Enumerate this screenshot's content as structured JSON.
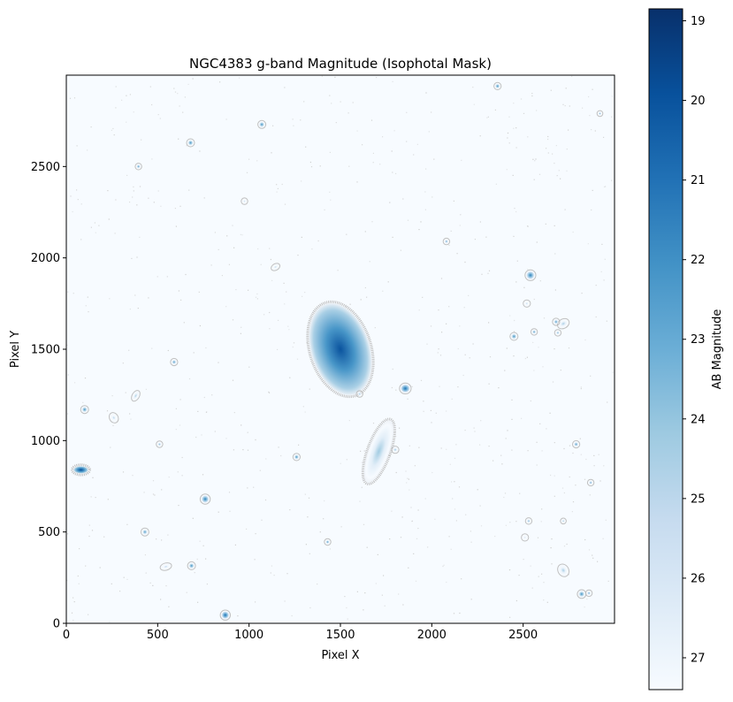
{
  "chart_data": {
    "type": "heatmap",
    "title": "NGC4383 g-band Magnitude (Isophotal Mask)",
    "xlabel": "Pixel X",
    "ylabel": "Pixel Y",
    "xlim": [
      0,
      3000
    ],
    "ylim": [
      0,
      3000
    ],
    "x_ticks": [
      0,
      500,
      1000,
      1500,
      2000,
      2500
    ],
    "y_ticks": [
      0,
      500,
      1000,
      1500,
      2000,
      2500
    ],
    "grid": false,
    "colormap": "Blues_r",
    "colorbar": {
      "label": "AB Magnitude",
      "range": [
        18.85,
        27.4
      ],
      "ticks": [
        19,
        20,
        21,
        22,
        23,
        24,
        25,
        26,
        27
      ],
      "color_bright": "#08306b",
      "color_faint": "#f7fbff",
      "stops": [
        "#08306b",
        "#08519c",
        "#2171b5",
        "#4292c6",
        "#6baed6",
        "#9ecae1",
        "#c6dbef",
        "#deebf7",
        "#f7fbff"
      ]
    },
    "sources": [
      {
        "name": "NGC4383",
        "x": 1500,
        "y": 1500,
        "rx": 160,
        "ry": 260,
        "angle_deg": -18,
        "peak_mag": 20.0
      },
      {
        "name": "companion",
        "x": 1710,
        "y": 940,
        "rx": 55,
        "ry": 180,
        "angle_deg": 20,
        "peak_mag": 24.3
      },
      {
        "x": 80,
        "y": 840,
        "rx": 40,
        "ry": 20,
        "angle_deg": 0,
        "peak_mag": 19.8
      },
      {
        "x": 2540,
        "y": 1905,
        "rx": 22,
        "ry": 22,
        "angle_deg": 0,
        "peak_mag": 21.5
      },
      {
        "x": 1855,
        "y": 1285,
        "rx": 24,
        "ry": 22,
        "angle_deg": 0,
        "peak_mag": 21.0
      },
      {
        "x": 760,
        "y": 680,
        "rx": 20,
        "ry": 20,
        "angle_deg": 0,
        "peak_mag": 21.5
      },
      {
        "x": 870,
        "y": 45,
        "rx": 20,
        "ry": 20,
        "angle_deg": 0,
        "peak_mag": 21.0
      },
      {
        "x": 2720,
        "y": 1640,
        "rx": 26,
        "ry": 18,
        "angle_deg": -30,
        "peak_mag": 24.5
      },
      {
        "x": 2720,
        "y": 290,
        "rx": 22,
        "ry": 28,
        "angle_deg": -30,
        "peak_mag": 24.5
      },
      {
        "x": 2820,
        "y": 160,
        "rx": 16,
        "ry": 16,
        "angle_deg": 0,
        "peak_mag": 22.0
      },
      {
        "x": 2860,
        "y": 165,
        "rx": 10,
        "ry": 10,
        "angle_deg": 0,
        "peak_mag": 23.0
      },
      {
        "x": 2450,
        "y": 1570,
        "rx": 14,
        "ry": 14,
        "angle_deg": 0,
        "peak_mag": 22.0
      },
      {
        "x": 2560,
        "y": 1595,
        "rx": 10,
        "ry": 10,
        "angle_deg": 0,
        "peak_mag": 22.5
      },
      {
        "x": 2680,
        "y": 1650,
        "rx": 12,
        "ry": 12,
        "angle_deg": 0,
        "peak_mag": 22.5
      },
      {
        "x": 680,
        "y": 2630,
        "rx": 14,
        "ry": 14,
        "angle_deg": 0,
        "peak_mag": 22.0
      },
      {
        "x": 1070,
        "y": 2730,
        "rx": 14,
        "ry": 14,
        "angle_deg": 0,
        "peak_mag": 22.0
      },
      {
        "x": 2360,
        "y": 2940,
        "rx": 12,
        "ry": 12,
        "angle_deg": 0,
        "peak_mag": 22.0
      },
      {
        "x": 395,
        "y": 2500,
        "rx": 10,
        "ry": 10,
        "angle_deg": 0,
        "peak_mag": 22.5
      },
      {
        "x": 590,
        "y": 1430,
        "rx": 12,
        "ry": 12,
        "angle_deg": 0,
        "peak_mag": 22.5
      },
      {
        "x": 100,
        "y": 1170,
        "rx": 14,
        "ry": 14,
        "angle_deg": 0,
        "peak_mag": 22.0
      },
      {
        "x": 260,
        "y": 1125,
        "rx": 16,
        "ry": 22,
        "angle_deg": -30,
        "peak_mag": 25.0
      },
      {
        "x": 380,
        "y": 1245,
        "rx": 12,
        "ry": 24,
        "angle_deg": 30,
        "peak_mag": 24.5
      },
      {
        "x": 1260,
        "y": 910,
        "rx": 12,
        "ry": 12,
        "angle_deg": 0,
        "peak_mag": 22.0
      },
      {
        "x": 1430,
        "y": 445,
        "rx": 10,
        "ry": 10,
        "angle_deg": 0,
        "peak_mag": 22.5
      },
      {
        "x": 430,
        "y": 500,
        "rx": 14,
        "ry": 14,
        "angle_deg": 0,
        "peak_mag": 22.5
      },
      {
        "x": 685,
        "y": 315,
        "rx": 14,
        "ry": 14,
        "angle_deg": 0,
        "peak_mag": 22.0
      },
      {
        "x": 545,
        "y": 310,
        "rx": 24,
        "ry": 12,
        "angle_deg": -15,
        "peak_mag": 25.0
      },
      {
        "x": 2790,
        "y": 980,
        "rx": 12,
        "ry": 12,
        "angle_deg": 0,
        "peak_mag": 22.5
      },
      {
        "x": 2870,
        "y": 770,
        "rx": 10,
        "ry": 10,
        "angle_deg": 0,
        "peak_mag": 23.0
      },
      {
        "x": 2510,
        "y": 470,
        "rx": 12,
        "ry": 12,
        "angle_deg": 0,
        "peak_mag": 25.5
      },
      {
        "x": 2520,
        "y": 1750,
        "rx": 12,
        "ry": 12,
        "angle_deg": 0,
        "peak_mag": 25.0
      },
      {
        "x": 2080,
        "y": 2090,
        "rx": 10,
        "ry": 10,
        "angle_deg": 0,
        "peak_mag": 23.0
      },
      {
        "x": 1145,
        "y": 1950,
        "rx": 18,
        "ry": 10,
        "angle_deg": -30,
        "peak_mag": 25.0
      },
      {
        "x": 2920,
        "y": 2790,
        "rx": 8,
        "ry": 8,
        "angle_deg": 0,
        "peak_mag": 23.0
      },
      {
        "x": 510,
        "y": 980,
        "rx": 10,
        "ry": 10,
        "angle_deg": 0,
        "peak_mag": 23.5
      },
      {
        "x": 1800,
        "y": 950,
        "rx": 12,
        "ry": 12,
        "angle_deg": 0,
        "peak_mag": 24.0
      },
      {
        "x": 1605,
        "y": 1255,
        "rx": 10,
        "ry": 10,
        "angle_deg": 0,
        "peak_mag": 24.0
      },
      {
        "x": 2530,
        "y": 560,
        "rx": 10,
        "ry": 10,
        "angle_deg": 0,
        "peak_mag": 23.5
      },
      {
        "x": 2690,
        "y": 1590,
        "rx": 10,
        "ry": 10,
        "angle_deg": 0,
        "peak_mag": 23.5
      },
      {
        "x": 2720,
        "y": 560,
        "rx": 8,
        "ry": 8,
        "angle_deg": 0,
        "peak_mag": 24.0
      },
      {
        "x": 975,
        "y": 2310,
        "rx": 10,
        "ry": 10,
        "angle_deg": 0,
        "peak_mag": 25.0
      }
    ]
  }
}
